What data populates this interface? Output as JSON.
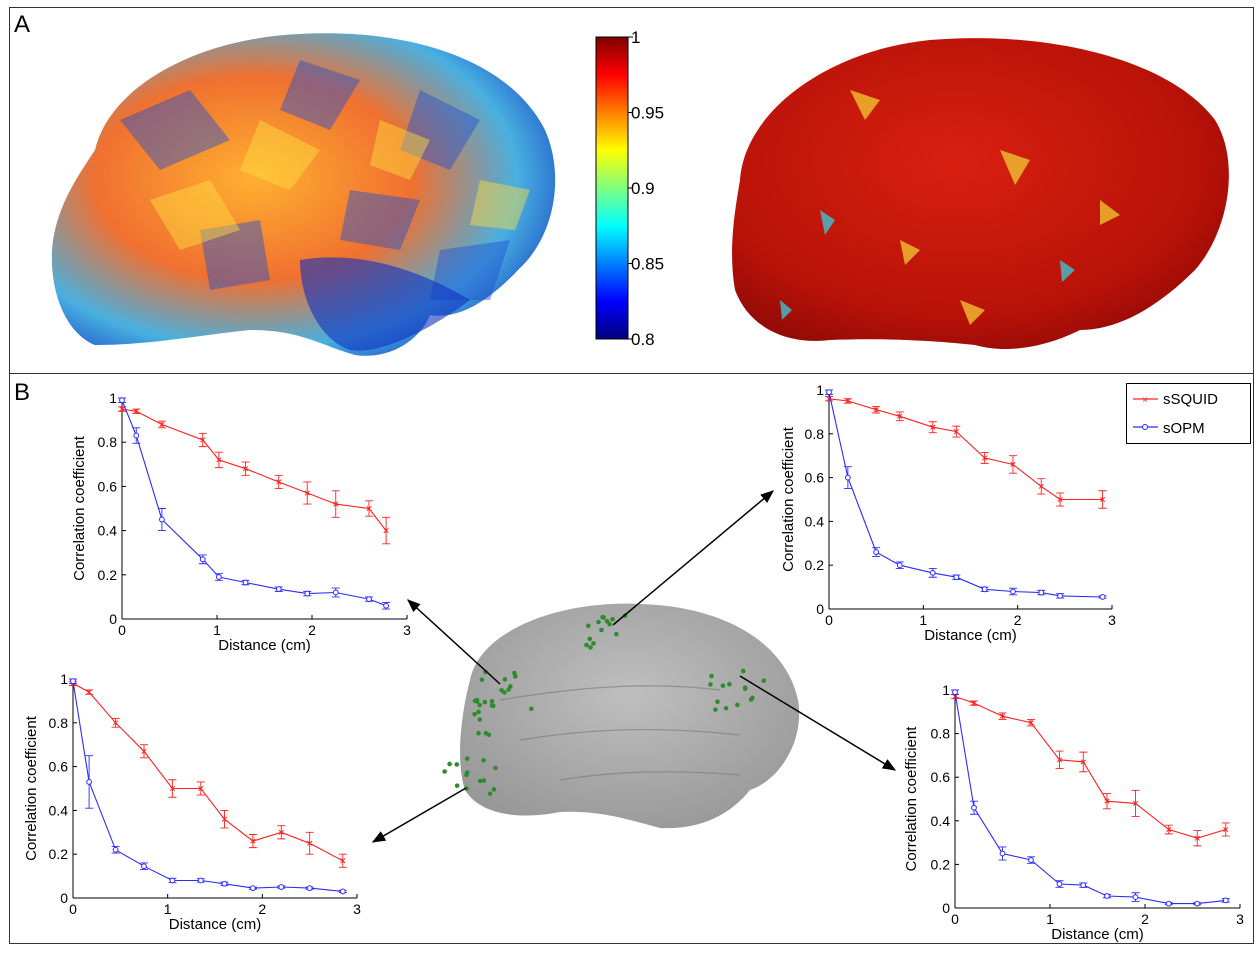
{
  "panels": {
    "a_label": "A",
    "b_label": "B"
  },
  "colorbar": {
    "ticks": [
      {
        "value": 1,
        "label": "1"
      },
      {
        "value": 0.95,
        "label": "0.95"
      },
      {
        "value": 0.9,
        "label": "0.9"
      },
      {
        "value": 0.85,
        "label": "0.85"
      },
      {
        "value": 0.8,
        "label": "0.8"
      }
    ],
    "range": [
      0.8,
      1
    ]
  },
  "legend": {
    "entries": [
      "sSQUID",
      "sOPM"
    ]
  },
  "colors": {
    "sSQUID": "#ff2020",
    "sOPM": "#2b2bff",
    "points": "#2e8b2e"
  },
  "chart_data": [
    {
      "type": "line",
      "id": "top-left",
      "xlabel": "Distance (cm)",
      "ylabel": "Correlation coefficient",
      "xlim": [
        0,
        3
      ],
      "ylim": [
        0,
        1
      ],
      "xticks": [
        "0",
        "1",
        "2",
        "3"
      ],
      "yticks": [
        "0",
        "0.2",
        "0.4",
        "0.6",
        "0.8",
        "1"
      ],
      "series": [
        {
          "name": "sSQUID",
          "x": [
            0,
            0.15,
            0.42,
            0.85,
            1.02,
            1.3,
            1.65,
            1.95,
            2.25,
            2.6,
            2.78
          ],
          "y": [
            0.95,
            0.94,
            0.88,
            0.81,
            0.72,
            0.68,
            0.62,
            0.57,
            0.52,
            0.5,
            0.4
          ],
          "err": [
            0.01,
            0.01,
            0.015,
            0.03,
            0.035,
            0.03,
            0.03,
            0.05,
            0.06,
            0.035,
            0.06
          ]
        },
        {
          "name": "sOPM",
          "x": [
            0,
            0.15,
            0.42,
            0.85,
            1.02,
            1.3,
            1.65,
            1.95,
            2.25,
            2.6,
            2.78
          ],
          "y": [
            0.99,
            0.83,
            0.45,
            0.27,
            0.19,
            0.165,
            0.135,
            0.115,
            0.12,
            0.09,
            0.06
          ],
          "err": [
            0.01,
            0.035,
            0.05,
            0.02,
            0.015,
            0.01,
            0.01,
            0.01,
            0.02,
            0.01,
            0.015
          ]
        }
      ]
    },
    {
      "type": "line",
      "id": "top-right",
      "xlabel": "Distance (cm)",
      "ylabel": "Correlation coefficient",
      "xlim": [
        0,
        3
      ],
      "ylim": [
        0,
        1
      ],
      "xticks": [
        "0",
        "1",
        "2",
        "3"
      ],
      "yticks": [
        "0",
        "0.2",
        "0.4",
        "0.6",
        "0.8",
        "1"
      ],
      "series": [
        {
          "name": "sSQUID",
          "x": [
            0,
            0.2,
            0.5,
            0.75,
            1.1,
            1.35,
            1.65,
            1.95,
            2.25,
            2.45,
            2.9
          ],
          "y": [
            0.96,
            0.95,
            0.91,
            0.88,
            0.83,
            0.81,
            0.69,
            0.66,
            0.56,
            0.5,
            0.5
          ],
          "err": [
            0.01,
            0.01,
            0.015,
            0.02,
            0.025,
            0.025,
            0.025,
            0.04,
            0.035,
            0.03,
            0.04
          ]
        },
        {
          "name": "sOPM",
          "x": [
            0,
            0.2,
            0.5,
            0.75,
            1.1,
            1.35,
            1.65,
            1.95,
            2.25,
            2.45,
            2.9
          ],
          "y": [
            0.99,
            0.6,
            0.26,
            0.2,
            0.165,
            0.145,
            0.09,
            0.08,
            0.075,
            0.06,
            0.055
          ],
          "err": [
            0.01,
            0.05,
            0.02,
            0.015,
            0.02,
            0.01,
            0.01,
            0.015,
            0.01,
            0.01,
            0.005
          ]
        }
      ]
    },
    {
      "type": "line",
      "id": "bottom-left",
      "xlabel": "Distance (cm)",
      "ylabel": "Correlation coefficient",
      "xlim": [
        0,
        3
      ],
      "ylim": [
        0,
        1
      ],
      "xticks": [
        "0",
        "1",
        "2",
        "3"
      ],
      "yticks": [
        "0",
        "0.2",
        "0.4",
        "0.6",
        "0.8",
        "1"
      ],
      "series": [
        {
          "name": "sSQUID",
          "x": [
            0,
            0.17,
            0.45,
            0.75,
            1.05,
            1.35,
            1.6,
            1.9,
            2.2,
            2.5,
            2.85
          ],
          "y": [
            0.98,
            0.94,
            0.8,
            0.67,
            0.5,
            0.5,
            0.36,
            0.26,
            0.3,
            0.25,
            0.17
          ],
          "err": [
            0.01,
            0.01,
            0.02,
            0.03,
            0.04,
            0.03,
            0.04,
            0.03,
            0.03,
            0.05,
            0.03
          ]
        },
        {
          "name": "sOPM",
          "x": [
            0,
            0.17,
            0.45,
            0.75,
            1.05,
            1.35,
            1.6,
            1.9,
            2.2,
            2.5,
            2.85
          ],
          "y": [
            0.99,
            0.53,
            0.22,
            0.145,
            0.08,
            0.08,
            0.065,
            0.045,
            0.05,
            0.045,
            0.03
          ],
          "err": [
            0.01,
            0.12,
            0.015,
            0.015,
            0.01,
            0.008,
            0.008,
            0.005,
            0.005,
            0.005,
            0.005
          ]
        }
      ]
    },
    {
      "type": "line",
      "id": "bottom-right",
      "xlabel": "Distance (cm)",
      "ylabel": "Correlation coefficient",
      "xlim": [
        0,
        3
      ],
      "ylim": [
        0,
        1
      ],
      "xticks": [
        "0",
        "1",
        "2",
        "3"
      ],
      "yticks": [
        "0",
        "0.2",
        "0.4",
        "0.6",
        "0.8",
        "1"
      ],
      "series": [
        {
          "name": "sSQUID",
          "x": [
            0,
            0.2,
            0.5,
            0.8,
            1.1,
            1.35,
            1.6,
            1.9,
            2.25,
            2.55,
            2.85
          ],
          "y": [
            0.97,
            0.94,
            0.88,
            0.85,
            0.68,
            0.67,
            0.49,
            0.48,
            0.36,
            0.32,
            0.36
          ],
          "err": [
            0.01,
            0.01,
            0.015,
            0.015,
            0.04,
            0.045,
            0.035,
            0.06,
            0.02,
            0.035,
            0.03
          ]
        },
        {
          "name": "sOPM",
          "x": [
            0,
            0.2,
            0.5,
            0.8,
            1.1,
            1.35,
            1.6,
            1.9,
            2.25,
            2.55,
            2.85
          ],
          "y": [
            0.99,
            0.46,
            0.25,
            0.22,
            0.11,
            0.105,
            0.055,
            0.05,
            0.02,
            0.02,
            0.035
          ],
          "err": [
            0.01,
            0.03,
            0.03,
            0.015,
            0.015,
            0.01,
            0.008,
            0.02,
            0.005,
            0.005,
            0.008
          ]
        }
      ]
    }
  ]
}
